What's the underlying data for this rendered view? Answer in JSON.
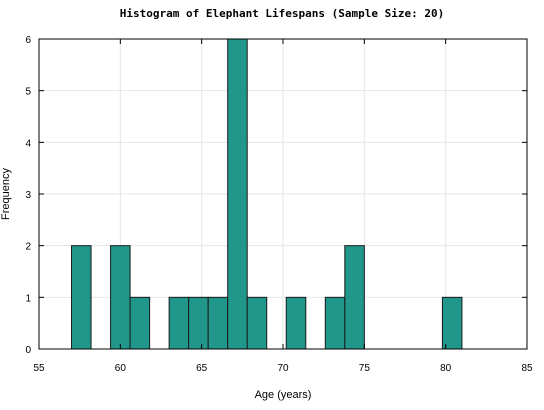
{
  "chart_data": {
    "type": "bar",
    "title": "Histogram of Elephant Lifespans (Sample Size: 20)",
    "xlabel": "Age (years)",
    "ylabel": "Frequency",
    "xlim": [
      55,
      85
    ],
    "ylim": [
      0,
      6
    ],
    "xticks": [
      55,
      60,
      65,
      70,
      75,
      80,
      85
    ],
    "yticks": [
      0,
      1,
      2,
      3,
      4,
      5,
      6
    ],
    "grid": true,
    "bin_width": 1.2,
    "bins": [
      {
        "start": 57.0,
        "end": 58.2,
        "count": 2
      },
      {
        "start": 58.2,
        "end": 59.4,
        "count": 0
      },
      {
        "start": 59.4,
        "end": 60.6,
        "count": 2
      },
      {
        "start": 60.6,
        "end": 61.8,
        "count": 1
      },
      {
        "start": 61.8,
        "end": 63.0,
        "count": 0
      },
      {
        "start": 63.0,
        "end": 64.2,
        "count": 1
      },
      {
        "start": 64.2,
        "end": 65.4,
        "count": 1
      },
      {
        "start": 65.4,
        "end": 66.6,
        "count": 1
      },
      {
        "start": 66.6,
        "end": 67.8,
        "count": 6
      },
      {
        "start": 67.8,
        "end": 69.0,
        "count": 1
      },
      {
        "start": 69.0,
        "end": 70.2,
        "count": 0
      },
      {
        "start": 70.2,
        "end": 71.4,
        "count": 1
      },
      {
        "start": 71.4,
        "end": 72.6,
        "count": 0
      },
      {
        "start": 72.6,
        "end": 73.8,
        "count": 1
      },
      {
        "start": 73.8,
        "end": 75.0,
        "count": 2
      },
      {
        "start": 75.0,
        "end": 76.2,
        "count": 0
      },
      {
        "start": 76.2,
        "end": 77.4,
        "count": 0
      },
      {
        "start": 77.4,
        "end": 78.6,
        "count": 0
      },
      {
        "start": 78.6,
        "end": 79.8,
        "count": 0
      },
      {
        "start": 79.8,
        "end": 81.0,
        "count": 1
      }
    ],
    "colors": {
      "bar_fill": "#21968b",
      "bar_edge": "#1a1a1a"
    }
  }
}
